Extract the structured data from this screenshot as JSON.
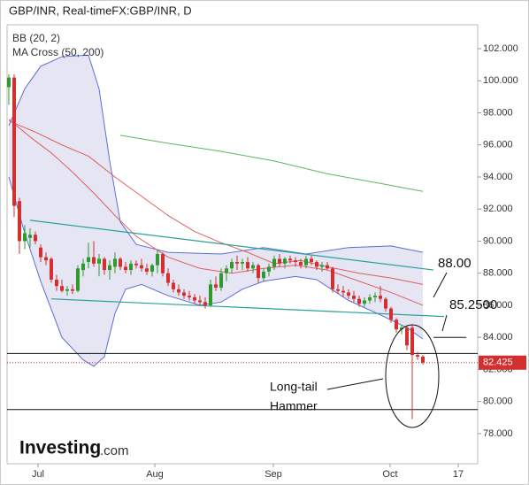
{
  "chart_data": {
    "type": "candlestick",
    "title": "GBP/INR, Real-timeFX:GBP/INR, D",
    "indicators": [
      "BB (20, 2)",
      "MA Cross (50, 200)"
    ],
    "open": [
      99.6,
      100.2,
      92.5,
      90,
      90.2,
      90.4,
      89.6,
      89,
      88.9,
      87.6,
      87.2,
      86.9,
      87,
      86.9,
      88.2,
      88.7,
      89,
      88.6,
      88.9,
      88.2,
      88.4,
      88.9,
      88.4,
      88.2,
      88.6,
      88.5,
      88.3,
      88.1,
      88.5,
      89.2,
      88,
      87.4,
      87,
      86.8,
      86.6,
      86.5,
      86.3,
      86.2,
      86,
      87.3,
      87.1,
      88,
      88.3,
      88.7,
      88.6,
      88.7,
      88.3,
      88.5,
      87.7,
      88.1,
      88.4,
      88.9,
      88.6,
      88.9,
      88.8,
      88.7,
      88.5,
      88.9,
      88.7,
      88.4,
      88.5,
      88.3,
      87,
      86.9,
      86.8,
      86.6,
      86.4,
      86.1,
      86.3,
      86.5,
      86.6,
      86.4,
      85.8,
      85.1,
      84.5,
      84.6,
      84.6,
      82.9,
      82.8
    ],
    "high": [
      100.4,
      100.4,
      92.7,
      91,
      90.8,
      90.6,
      89.8,
      89.3,
      89,
      87.9,
      87.6,
      87.2,
      87.3,
      88.5,
      88.9,
      89.9,
      90,
      89.2,
      89,
      88.8,
      89.3,
      89,
      88.7,
      88.8,
      88.8,
      88.9,
      88.6,
      88.6,
      89.5,
      89.3,
      88.3,
      87.6,
      87.3,
      87,
      86.9,
      86.7,
      86.6,
      86.5,
      87.6,
      87.8,
      88.3,
      88.5,
      88.9,
      89.1,
      88.9,
      89,
      88.7,
      88.6,
      88.3,
      88.6,
      89.1,
      89.2,
      89,
      89.1,
      89,
      88.9,
      89.1,
      89.1,
      88.8,
      88.7,
      88.7,
      88.4,
      87.3,
      87.2,
      87,
      86.9,
      86.6,
      86.5,
      86.7,
      86.8,
      87.2,
      86.5,
      85.9,
      85.2,
      84.8,
      84.7,
      84.8,
      83.1,
      82.9
    ],
    "low": [
      98.5,
      91.5,
      89.2,
      89.5,
      89.6,
      89.8,
      88.7,
      88.5,
      87.4,
      86.9,
      86.8,
      86.6,
      86.7,
      86.8,
      87.8,
      88.3,
      88.4,
      87.8,
      87.9,
      87.6,
      88,
      88.2,
      88,
      87.9,
      88.3,
      88.1,
      87.9,
      87.8,
      88,
      87.8,
      87.2,
      86.8,
      86.6,
      86.4,
      86.3,
      86.1,
      86,
      85.8,
      85.9,
      86.9,
      86.9,
      87.5,
      88,
      88.2,
      88.2,
      88.1,
      88,
      87.4,
      87.5,
      87.8,
      88.2,
      88.4,
      88.3,
      88.6,
      88.4,
      88.3,
      88.3,
      88.5,
      88.2,
      88.1,
      88.2,
      86.8,
      86.7,
      86.5,
      86.4,
      86.2,
      85.9,
      85.9,
      86.1,
      86.2,
      86.2,
      85.6,
      84.9,
      84.3,
      84.2,
      83.2,
      78.9,
      82.6,
      82.3
    ],
    "close": [
      100.2,
      92.2,
      90,
      90.5,
      90.4,
      90,
      89,
      88.8,
      87.6,
      87.2,
      86.9,
      87,
      86.9,
      88.3,
      88.6,
      89,
      88.6,
      88.9,
      88.2,
      88.5,
      88.9,
      88.4,
      88.2,
      88.6,
      88.5,
      88.3,
      88.1,
      88.5,
      89.2,
      88,
      87.4,
      87,
      86.8,
      86.6,
      86.5,
      86.3,
      86.2,
      86,
      87.3,
      87.1,
      88,
      88.3,
      88.7,
      88.6,
      88.7,
      88.3,
      88.5,
      87.7,
      88.1,
      88.4,
      88.9,
      88.6,
      88.9,
      88.8,
      88.7,
      88.5,
      88.9,
      88.7,
      88.4,
      88.5,
      88.3,
      87,
      86.9,
      86.8,
      86.6,
      86.4,
      86.1,
      86.3,
      86.5,
      86.6,
      86.4,
      85.8,
      85.1,
      84.5,
      84.6,
      83.5,
      82.9,
      82.8,
      82.425
    ],
    "up_color": "#2e9a2e",
    "down_color": "#d32f2f",
    "bands": {
      "color": "#5a6fd6",
      "fill": "#dcdcf0",
      "upper": {
        "x": [
          0,
          3,
          6,
          10,
          15,
          17,
          19,
          21,
          24,
          30,
          40,
          48,
          56,
          64,
          72,
          78
        ],
        "values": [
          97.2,
          99.5,
          100.9,
          101.5,
          101.6,
          99.5,
          95,
          91.2,
          89.8,
          89.3,
          89.2,
          89.6,
          89.2,
          89.6,
          89.7,
          89.3
        ]
      },
      "lower": {
        "x": [
          0,
          3,
          6,
          10,
          14,
          16,
          18,
          20,
          22,
          25,
          30,
          36,
          40,
          44,
          48,
          54,
          58,
          64,
          70,
          75,
          78
        ],
        "values": [
          94,
          90.5,
          87.5,
          84,
          82.6,
          82.2,
          82.8,
          85.5,
          87,
          87.3,
          86.6,
          86,
          86.2,
          87,
          87.5,
          87.8,
          87.6,
          86.3,
          85.4,
          84.6,
          83.9
        ]
      }
    },
    "lines": [
      {
        "color": "#e06060",
        "x": [
          0,
          4,
          8,
          12,
          16,
          20,
          24,
          30,
          36,
          42,
          48,
          54,
          60,
          66,
          72,
          78
        ],
        "values": [
          97.6,
          96.5,
          95.5,
          94.3,
          93,
          91.6,
          90.3,
          89,
          88.3,
          88,
          88.3,
          88.5,
          88.2,
          87.5,
          86.8,
          86
        ]
      },
      {
        "color": "#e06060",
        "x": [
          0,
          5,
          10,
          15,
          20,
          25,
          30,
          35,
          40,
          45,
          50,
          55,
          60,
          66,
          72,
          78
        ],
        "values": [
          97.5,
          96.8,
          96,
          95.3,
          94,
          92.8,
          91.6,
          90.6,
          89.9,
          89.3,
          88.6,
          88.8,
          88.4,
          88,
          87.7,
          87.3
        ]
      },
      {
        "color": "#5cb85c",
        "x": [
          21,
          30,
          40,
          50,
          60,
          70,
          78
        ],
        "values": [
          96.6,
          96.1,
          95.6,
          95,
          94.2,
          93.6,
          93.1
        ]
      }
    ],
    "trendlines": [
      {
        "color": "#2aa198",
        "x": [
          4,
          80
        ],
        "values": [
          91.3,
          88.2
        ]
      },
      {
        "color": "#2aa198",
        "x": [
          8,
          82
        ],
        "values": [
          86.4,
          85.3
        ]
      }
    ],
    "levels": [
      {
        "x": [
          -0.33,
          88.33
        ],
        "value": 83
      },
      {
        "x": [
          -0.33,
          88.33
        ],
        "value": 79.5
      },
      {
        "x": [
          80,
          86.2
        ],
        "value": 84
      }
    ],
    "last_price": 82.425,
    "annotations": [
      "88.00",
      "85.2500",
      "Long-tail",
      "Hammer"
    ],
    "xlim": [
      -0.33,
      88.33
    ],
    "xticks": [
      {
        "value": 5.5,
        "label": "Jul"
      },
      {
        "value": 27.5,
        "label": "Aug"
      },
      {
        "value": 49.83,
        "label": "Sep"
      },
      {
        "value": 71.83,
        "label": "Oct"
      },
      {
        "value": 84.67,
        "label": "17"
      }
    ],
    "ylim": [
      76.12,
      103.49
    ],
    "yticks": [
      {
        "value": 78,
        "label": "78.000"
      },
      {
        "value": 80,
        "label": "80.000"
      },
      {
        "value": 82,
        "label": "82.000"
      },
      {
        "value": 84,
        "label": "84.000"
      },
      {
        "value": 86,
        "label": "86.000"
      },
      {
        "value": 88,
        "label": "88.000"
      },
      {
        "value": 90,
        "label": "90.000"
      },
      {
        "value": 92,
        "label": "92.000"
      },
      {
        "value": 94,
        "label": "94.000"
      },
      {
        "value": 96,
        "label": "96.000"
      },
      {
        "value": 98,
        "label": "98.000"
      },
      {
        "value": 100,
        "label": "100.000"
      },
      {
        "value": 102,
        "label": "102.000"
      }
    ],
    "brand": {
      "name": "Investing",
      "suffix": ".com"
    }
  }
}
